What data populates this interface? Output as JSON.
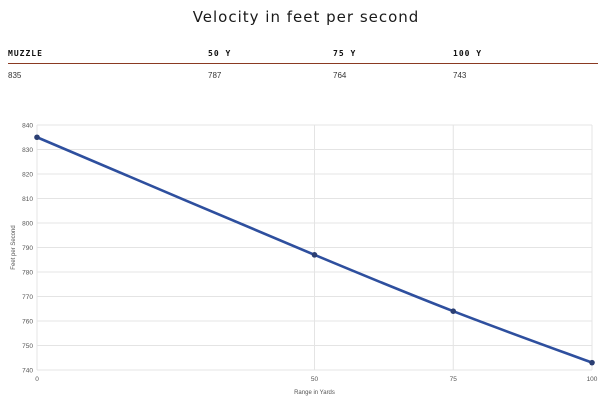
{
  "title": "Velocity in feet per second",
  "table": {
    "headers": [
      "MUZZLE",
      "50 Y",
      "75 Y",
      "100 Y"
    ],
    "values": [
      "835",
      "787",
      "764",
      "743"
    ]
  },
  "chart_data": {
    "type": "line",
    "x": [
      0,
      50,
      75,
      100
    ],
    "series": [
      {
        "values": [
          835,
          787,
          764,
          743
        ],
        "color": "#2e4f9e"
      }
    ],
    "xlabel": "Range in Yards",
    "ylabel": "Feet per Second",
    "xlim": [
      0,
      100
    ],
    "ylim": [
      740,
      840
    ],
    "xticks": [
      "0",
      "50",
      "75",
      "100"
    ],
    "yticks": [
      "740",
      "750",
      "760",
      "770",
      "780",
      "790",
      "800",
      "810",
      "820",
      "830",
      "840"
    ],
    "grid": true,
    "legend": "none"
  }
}
